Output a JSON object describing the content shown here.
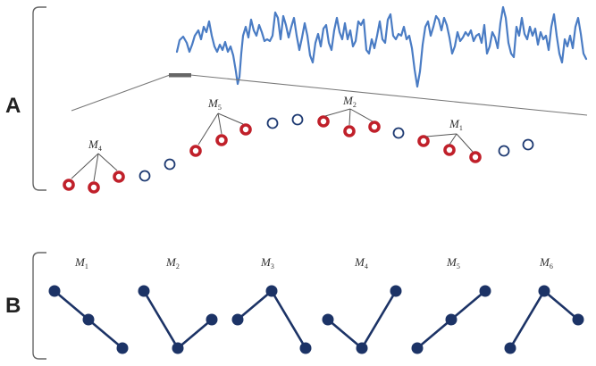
{
  "panel_a": {
    "letter": "A",
    "motifs": [
      {
        "name": "M",
        "sub": "4"
      },
      {
        "name": "M",
        "sub": "5"
      },
      {
        "name": "M",
        "sub": "2"
      },
      {
        "name": "M",
        "sub": "1"
      }
    ],
    "point_states": [
      "motif",
      "motif",
      "motif",
      "open",
      "open",
      "motif",
      "motif",
      "motif",
      "open",
      "open",
      "motif",
      "motif",
      "motif",
      "open",
      "motif",
      "motif",
      "motif",
      "open",
      "open"
    ]
  },
  "panel_b": {
    "letter": "B",
    "motifs": [
      {
        "name": "M",
        "sub": "1",
        "pattern": [
          3,
          2,
          1
        ]
      },
      {
        "name": "M",
        "sub": "2",
        "pattern": [
          3,
          1,
          2
        ]
      },
      {
        "name": "M",
        "sub": "3",
        "pattern": [
          2,
          3,
          1
        ]
      },
      {
        "name": "M",
        "sub": "4",
        "pattern": [
          2,
          1,
          3
        ]
      },
      {
        "name": "M",
        "sub": "5",
        "pattern": [
          1,
          2,
          3
        ]
      },
      {
        "name": "M",
        "sub": "6",
        "pattern": [
          1,
          3,
          2
        ]
      }
    ]
  },
  "colors": {
    "signal": "#4a7cc4",
    "motif_point": "#c0202a",
    "open_point": "#1e3a72",
    "motif_glyph": "#1c3366",
    "bracket": "#666666",
    "guide_line": "#777777",
    "window_marker": "#666666"
  }
}
